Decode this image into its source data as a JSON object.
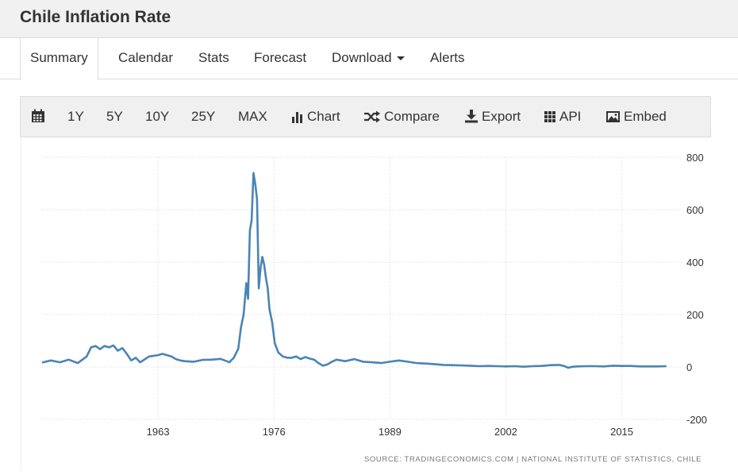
{
  "header": {
    "title": "Chile Inflation Rate"
  },
  "tabs": [
    {
      "label": "Summary",
      "active": true
    },
    {
      "label": "Calendar",
      "active": false
    },
    {
      "label": "Stats",
      "active": false
    },
    {
      "label": "Forecast",
      "active": false
    },
    {
      "label": "Download",
      "active": false,
      "dropdown": true
    },
    {
      "label": "Alerts",
      "active": false
    }
  ],
  "toolbar": {
    "calendar_icon": "calendar-icon",
    "ranges": [
      "1Y",
      "5Y",
      "10Y",
      "25Y",
      "MAX"
    ],
    "chart_label": "Chart",
    "compare_label": "Compare",
    "export_label": "Export",
    "api_label": "API",
    "embed_label": "Embed"
  },
  "source": "SOURCE: TRADINGECONOMICS.COM | NATIONAL INSTITUTE OF STATISTICS, CHILE",
  "chart_data": {
    "type": "line",
    "title": "",
    "xlabel": "",
    "ylabel": "",
    "line_color": "#4a84b6",
    "grid": true,
    "xlim": [
      1950,
      2021
    ],
    "ylim": [
      -200,
      800
    ],
    "x_ticks": [
      1963,
      1976,
      1989,
      2002,
      2015
    ],
    "y_ticks": [
      -200,
      0,
      200,
      400,
      600,
      800
    ],
    "y_axis_side": "right",
    "series": [
      {
        "x": [
          1950.0,
          1951.0,
          1952.0,
          1953.0,
          1954.0,
          1955.0,
          1955.5,
          1956.0,
          1956.5,
          1957.0,
          1957.5,
          1958.0,
          1958.5,
          1959.0,
          1959.5,
          1960.0,
          1960.5,
          1961.0,
          1962.0,
          1963.0,
          1963.5,
          1964.0,
          1964.5,
          1965.0,
          1965.5,
          1966.0,
          1967.0,
          1968.0,
          1969.0,
          1970.0,
          1970.5,
          1971.0,
          1971.5,
          1972.0,
          1972.3,
          1972.6,
          1972.9,
          1973.1,
          1973.3,
          1973.5,
          1973.7,
          1973.9,
          1974.1,
          1974.3,
          1974.5,
          1974.7,
          1974.9,
          1975.1,
          1975.3,
          1975.5,
          1975.8,
          1976.1,
          1976.5,
          1977.0,
          1977.5,
          1978.0,
          1978.5,
          1979.0,
          1979.5,
          1980.0,
          1980.5,
          1981.0,
          1981.5,
          1982.0,
          1982.5,
          1983.0,
          1984.0,
          1985.0,
          1986.0,
          1987.0,
          1988.0,
          1989.0,
          1990.0,
          1991.0,
          1992.0,
          1993.0,
          1994.0,
          1995.0,
          1996.0,
          1997.0,
          1998.0,
          1999.0,
          2000.0,
          2001.0,
          2002.0,
          2003.0,
          2004.0,
          2005.0,
          2006.0,
          2007.0,
          2008.0,
          2008.5,
          2009.0,
          2009.5,
          2010.0,
          2011.0,
          2012.0,
          2013.0,
          2014.0,
          2015.0,
          2016.0,
          2017.0,
          2018.0,
          2019.0,
          2020.0
        ],
        "values": [
          17,
          25,
          18,
          28,
          15,
          40,
          75,
          80,
          68,
          80,
          75,
          82,
          62,
          72,
          50,
          25,
          35,
          18,
          40,
          45,
          50,
          45,
          40,
          30,
          25,
          22,
          20,
          27,
          28,
          31,
          25,
          18,
          35,
          70,
          150,
          200,
          320,
          260,
          520,
          560,
          740,
          700,
          640,
          300,
          380,
          420,
          390,
          340,
          300,
          220,
          170,
          90,
          55,
          40,
          35,
          35,
          40,
          30,
          38,
          32,
          28,
          15,
          5,
          10,
          20,
          28,
          22,
          30,
          20,
          18,
          15,
          20,
          25,
          20,
          15,
          13,
          11,
          8,
          7,
          6,
          5,
          3,
          4,
          3,
          2,
          3,
          1,
          3,
          4,
          7,
          8,
          4,
          -3,
          1,
          2,
          3,
          3,
          2,
          5,
          4,
          4,
          2,
          2,
          2,
          3
        ]
      }
    ]
  }
}
